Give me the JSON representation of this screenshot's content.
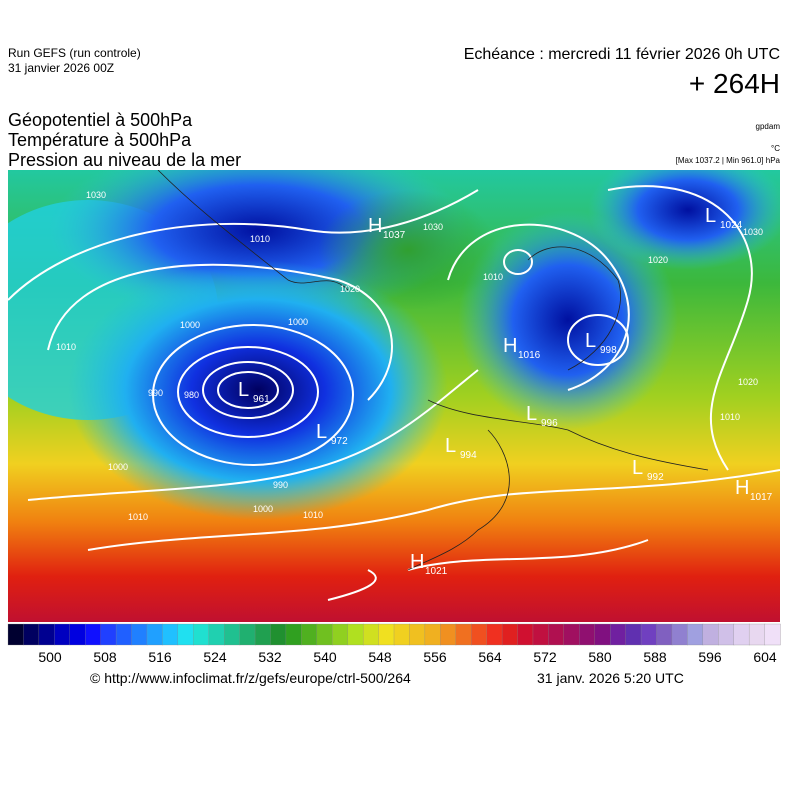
{
  "header": {
    "run": "Run GEFS (run controle)",
    "run_date": "31 janvier 2026 00Z",
    "echeance": "Echéance : mercredi 11 février 2026 0h UTC",
    "lead": "+ 264H",
    "fields": [
      "Géopotentiel à 500hPa",
      "Température à 500hPa",
      "Pression au niveau de la mer"
    ],
    "units": [
      "gpdam",
      "°C",
      "[Max 1037.2 | Min 961.0] hPa"
    ]
  },
  "map": {
    "centers": [
      {
        "type": "H",
        "value": "1037"
      },
      {
        "type": "L",
        "value": "1024"
      },
      {
        "type": "H",
        "value": "1016"
      },
      {
        "type": "L",
        "value": "998"
      },
      {
        "type": "L",
        "value": "961"
      },
      {
        "type": "L",
        "value": "972"
      },
      {
        "type": "L",
        "value": "996"
      },
      {
        "type": "L",
        "value": "994"
      },
      {
        "type": "L",
        "value": "992"
      },
      {
        "type": "H",
        "value": "1017"
      },
      {
        "type": "H",
        "value": "1021"
      }
    ],
    "contour_labels": [
      "1030",
      "1010",
      "1020",
      "1000",
      "1000",
      "1010",
      "990",
      "980",
      "1000",
      "990",
      "1000",
      "1010",
      "1030",
      "1020",
      "1010",
      "1030",
      "1010",
      "1010",
      "1020"
    ]
  },
  "colorbar": {
    "labels": [
      "500",
      "508",
      "516",
      "524",
      "532",
      "540",
      "548",
      "556",
      "564",
      "572",
      "580",
      "588",
      "596",
      "604"
    ]
  },
  "footer": {
    "url": "© http://www.infoclimat.fr/z/gefs/europe/ctrl-500/264",
    "time": "31 janv. 2026  5:20 UTC"
  }
}
